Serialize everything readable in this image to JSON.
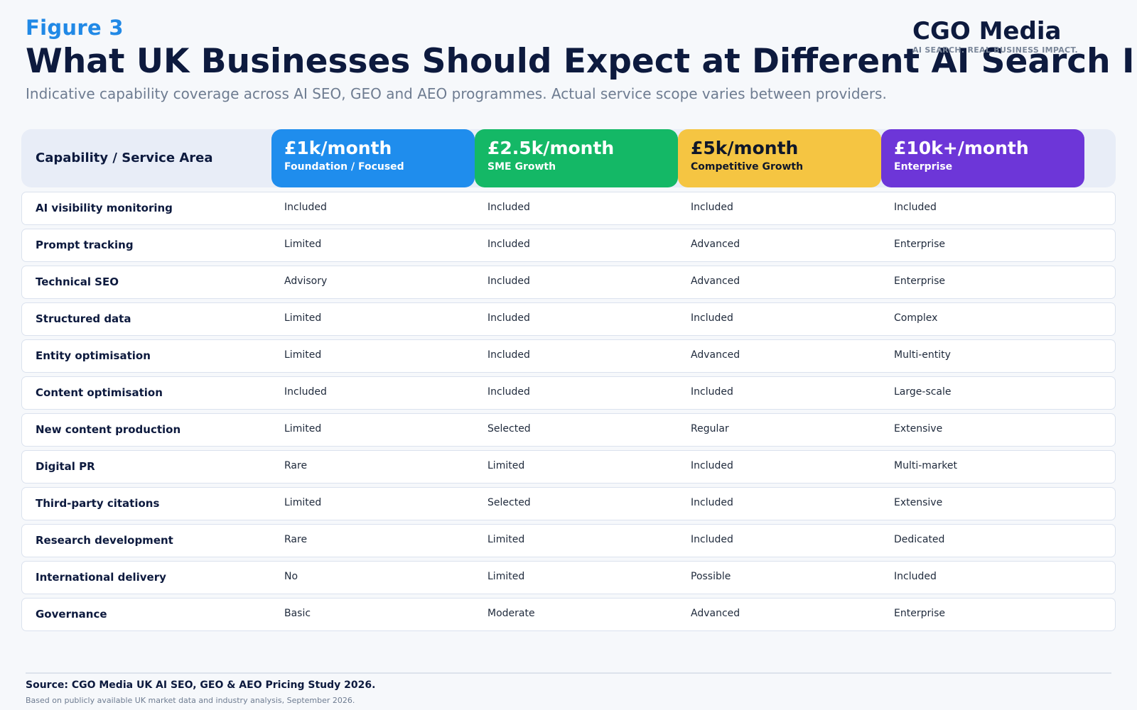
{
  "header": {
    "figure_label": "Figure 3",
    "title": "What UK Businesses Should Expect at Different AI Search Investment Levels",
    "subtitle": "Indicative capability coverage across AI SEO, GEO and AEO programmes. Actual service scope varies between providers."
  },
  "brand": {
    "name": "CGO Media",
    "tagline": "AI SEARCH. REAL BUSINESS IMPACT."
  },
  "table": {
    "header_label": "Capability / Service Area",
    "tiers": [
      {
        "price": "£1k/month",
        "name": "Foundation / Focused",
        "color": "#1f8ded",
        "text_color": "#ffffff"
      },
      {
        "price": "£2.5k/month",
        "name": "SME Growth",
        "color": "#14b866",
        "text_color": "#ffffff"
      },
      {
        "price": "£5k/month",
        "name": "Competitive Growth",
        "color": "#f5c542",
        "text_color": "#0f172a"
      },
      {
        "price": "£10k+/month",
        "name": "Enterprise",
        "color": "#6d36d8",
        "text_color": "#ffffff"
      }
    ],
    "rows": [
      {
        "label": "AI visibility monitoring",
        "values": [
          "Included",
          "Included",
          "Included",
          "Included"
        ]
      },
      {
        "label": "Prompt tracking",
        "values": [
          "Limited",
          "Included",
          "Advanced",
          "Enterprise"
        ]
      },
      {
        "label": "Technical SEO",
        "values": [
          "Advisory",
          "Included",
          "Advanced",
          "Enterprise"
        ]
      },
      {
        "label": "Structured data",
        "values": [
          "Limited",
          "Included",
          "Included",
          "Complex"
        ]
      },
      {
        "label": "Entity optimisation",
        "values": [
          "Limited",
          "Included",
          "Advanced",
          "Multi-entity"
        ]
      },
      {
        "label": "Content optimisation",
        "values": [
          "Included",
          "Included",
          "Included",
          "Large-scale"
        ]
      },
      {
        "label": "New content production",
        "values": [
          "Limited",
          "Selected",
          "Regular",
          "Extensive"
        ]
      },
      {
        "label": "Digital PR",
        "values": [
          "Rare",
          "Limited",
          "Included",
          "Multi-market"
        ]
      },
      {
        "label": "Third-party citations",
        "values": [
          "Limited",
          "Selected",
          "Included",
          "Extensive"
        ]
      },
      {
        "label": "Research development",
        "values": [
          "Rare",
          "Limited",
          "Included",
          "Dedicated"
        ]
      },
      {
        "label": "International delivery",
        "values": [
          "No",
          "Limited",
          "Possible",
          "Included"
        ]
      },
      {
        "label": "Governance",
        "values": [
          "Basic",
          "Moderate",
          "Advanced",
          "Enterprise"
        ]
      }
    ]
  },
  "footer": {
    "source": "Source: CGO Media UK AI SEO, GEO & AEO Pricing Study 2026.",
    "note": "Based on publicly available UK market data and industry analysis, September 2026."
  }
}
